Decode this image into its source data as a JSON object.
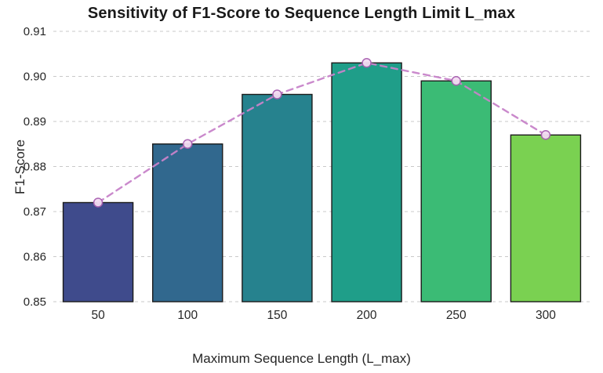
{
  "chart_data": {
    "type": "bar",
    "title": "Sensitivity of F1-Score to Sequence Length Limit L_max",
    "xlabel": "Maximum Sequence Length (L_max)",
    "ylabel": "F1-Score",
    "categories": [
      "50",
      "100",
      "150",
      "200",
      "250",
      "300"
    ],
    "values": [
      0.872,
      0.885,
      0.896,
      0.903,
      0.899,
      0.887
    ],
    "series": [
      {
        "name": "F1-Score bars",
        "type": "bar",
        "values": [
          0.872,
          0.885,
          0.896,
          0.903,
          0.899,
          0.887
        ]
      },
      {
        "name": "F1-Score trend line",
        "type": "line",
        "style": "dashed",
        "values": [
          0.872,
          0.885,
          0.896,
          0.903,
          0.899,
          0.887
        ]
      }
    ],
    "ylim": [
      0.85,
      0.91
    ],
    "yticks": [
      0.85,
      0.86,
      0.87,
      0.88,
      0.89,
      0.9,
      0.91
    ],
    "grid": true,
    "grid_style": "dashed-horizontal",
    "legend_position": "none",
    "bar_colors": [
      "#3f4b8c",
      "#31688e",
      "#26828e",
      "#1f9e89",
      "#3bbb75",
      "#7ad151"
    ],
    "bar_edge_color": "#1b1b1b",
    "line_color": "#c783c9",
    "marker_fill": "#f3dcf2",
    "marker_edge": "#a85fb0",
    "grid_color": "#c9c9c9",
    "text_color": "#262626",
    "background_color": "#ffffff"
  }
}
